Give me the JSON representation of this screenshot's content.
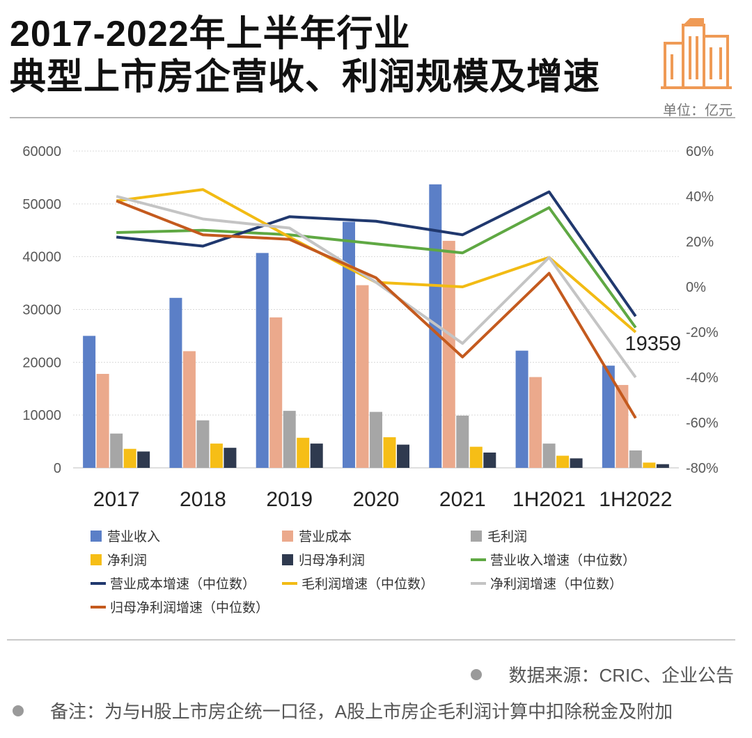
{
  "header": {
    "title_line1": "2017-2022年上半年行业",
    "title_line2": "典型上市房企营收、利润规模及增速",
    "unit": "单位：亿元"
  },
  "footer": {
    "source": "数据来源：CRIC、企业公告",
    "note": "备注：为与H股上市房企统一口径，A股上市房企毛利润计算中扣除税金及附加"
  },
  "colors": {
    "revenue": "#5b7fc7",
    "cost": "#eba98c",
    "gross": "#a6a6a6",
    "net": "#f6be16",
    "parent_net": "#2f3a4f",
    "rev_growth": "#5fa843",
    "cost_growth": "#20386e",
    "gross_growth": "#f2bb14",
    "net_growth": "#c4c4c4",
    "parent_growth": "#c45a1e",
    "logo": "#ef9a55"
  },
  "chart_data": {
    "type": "bar",
    "categories": [
      "2017",
      "2018",
      "2019",
      "2020",
      "2021",
      "1H2021",
      "1H2022"
    ],
    "y_left": {
      "ticks": [
        "0",
        "10000",
        "20000",
        "30000",
        "40000",
        "50000",
        "60000"
      ],
      "ylim": [
        0,
        60000
      ]
    },
    "y_right": {
      "ticks": [
        "-80%",
        "-60%",
        "-40%",
        "-20%",
        "0%",
        "20%",
        "40%",
        "60%"
      ],
      "ylim": [
        -80,
        60
      ]
    },
    "bar_series": [
      {
        "name": "营业收入",
        "color_key": "revenue",
        "values": [
          25000,
          32200,
          40700,
          46600,
          53700,
          22200,
          19359
        ]
      },
      {
        "name": "营业成本",
        "color_key": "cost",
        "values": [
          17800,
          22100,
          28500,
          34600,
          43000,
          17200,
          15700
        ]
      },
      {
        "name": "毛利润",
        "color_key": "gross",
        "values": [
          6500,
          9000,
          10800,
          10600,
          9900,
          4600,
          3300
        ]
      },
      {
        "name": "净利润",
        "color_key": "net",
        "values": [
          3600,
          4600,
          5700,
          5800,
          4000,
          2300,
          1000
        ]
      },
      {
        "name": "归母净利润",
        "color_key": "parent_net",
        "values": [
          3100,
          3800,
          4600,
          4400,
          2900,
          1800,
          700
        ]
      }
    ],
    "line_series": [
      {
        "name": "营业收入增速（中位数）",
        "color_key": "rev_growth",
        "values": [
          24,
          25,
          23,
          19,
          15,
          35,
          -18
        ]
      },
      {
        "name": "营业成本增速（中位数）",
        "color_key": "cost_growth",
        "values": [
          22,
          18,
          31,
          29,
          23,
          42,
          -13
        ]
      },
      {
        "name": "毛利润增速（中位数）",
        "color_key": "gross_growth",
        "values": [
          38,
          43,
          22,
          2,
          0,
          13,
          -20
        ]
      },
      {
        "name": "净利润增速（中位数）",
        "color_key": "net_growth",
        "values": [
          40,
          30,
          26,
          2,
          -25,
          13,
          -40
        ]
      },
      {
        "name": "归母净利润增速（中位数）",
        "color_key": "parent_growth",
        "values": [
          38,
          23,
          21,
          4,
          -31,
          6,
          -58
        ]
      }
    ],
    "annotation": {
      "label": "19359",
      "category": "1H2022"
    },
    "grid": true,
    "legend": "bottom"
  }
}
